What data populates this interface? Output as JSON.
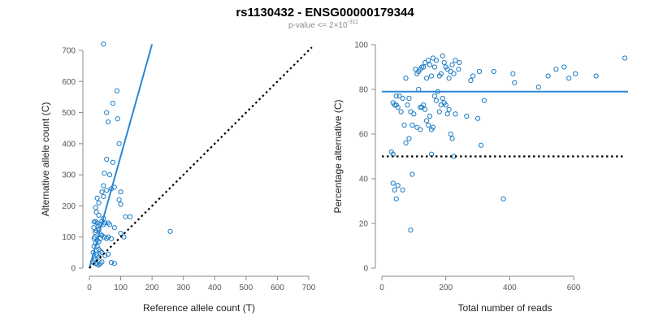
{
  "title": "rs1130432 - ENSG00000179344",
  "subtitle_prefix": "p-value <= 2×10",
  "subtitle_exponent": "-311",
  "colors": {
    "points": "#1a7cc4",
    "fit": "#2a87d6",
    "reference": "#000000",
    "axis": "#888888"
  },
  "chart_data": [
    {
      "type": "scatter",
      "name": "allele-count-scatter",
      "xlabel": "Reference allele count (T)",
      "ylabel": "Alternative allele count (C)",
      "xlim": [
        0,
        700
      ],
      "ylim": [
        0,
        700
      ],
      "xticks": [
        0,
        100,
        200,
        300,
        400,
        500,
        600,
        700
      ],
      "yticks": [
        0,
        100,
        200,
        300,
        400,
        500,
        600,
        700
      ],
      "fit_line": {
        "x": [
          0,
          200
        ],
        "y": [
          0,
          720
        ],
        "style": "solid"
      },
      "reference_line": {
        "x": [
          0,
          710
        ],
        "y": [
          0,
          710
        ],
        "style": "dotted"
      },
      "points": [
        [
          45,
          720
        ],
        [
          75,
          530
        ],
        [
          88,
          570
        ],
        [
          55,
          500
        ],
        [
          90,
          480
        ],
        [
          60,
          470
        ],
        [
          95,
          400
        ],
        [
          55,
          350
        ],
        [
          75,
          340
        ],
        [
          65,
          300
        ],
        [
          48,
          305
        ],
        [
          130,
          165
        ],
        [
          115,
          165
        ],
        [
          258,
          118
        ],
        [
          100,
          245
        ],
        [
          95,
          220
        ],
        [
          100,
          205
        ],
        [
          80,
          260
        ],
        [
          70,
          255
        ],
        [
          55,
          250
        ],
        [
          45,
          265
        ],
        [
          45,
          230
        ],
        [
          40,
          245
        ],
        [
          25,
          225
        ],
        [
          30,
          210
        ],
        [
          20,
          195
        ],
        [
          22,
          180
        ],
        [
          30,
          170
        ],
        [
          40,
          150
        ],
        [
          45,
          160
        ],
        [
          50,
          145
        ],
        [
          60,
          145
        ],
        [
          65,
          140
        ],
        [
          45,
          140
        ],
        [
          35,
          140
        ],
        [
          25,
          145
        ],
        [
          20,
          150
        ],
        [
          15,
          148
        ],
        [
          30,
          125
        ],
        [
          35,
          110
        ],
        [
          40,
          105
        ],
        [
          48,
          100
        ],
        [
          55,
          95
        ],
        [
          60,
          100
        ],
        [
          70,
          95
        ],
        [
          80,
          130
        ],
        [
          100,
          112
        ],
        [
          110,
          100
        ],
        [
          18,
          100
        ],
        [
          15,
          95
        ],
        [
          25,
          90
        ],
        [
          30,
          85
        ],
        [
          35,
          95
        ],
        [
          20,
          80
        ],
        [
          25,
          70
        ],
        [
          30,
          60
        ],
        [
          35,
          55
        ],
        [
          40,
          50
        ],
        [
          22,
          45
        ],
        [
          25,
          40
        ],
        [
          30,
          35
        ],
        [
          18,
          30
        ],
        [
          15,
          25
        ],
        [
          10,
          20
        ],
        [
          20,
          15
        ],
        [
          25,
          12
        ],
        [
          30,
          10
        ],
        [
          35,
          15
        ],
        [
          40,
          20
        ],
        [
          50,
          40
        ],
        [
          60,
          45
        ],
        [
          70,
          18
        ],
        [
          80,
          15
        ],
        [
          15,
          70
        ],
        [
          12,
          50
        ],
        [
          14,
          130
        ],
        [
          18,
          115
        ],
        [
          22,
          120
        ],
        [
          28,
          135
        ]
      ]
    },
    {
      "type": "scatter",
      "name": "percentage-scatter",
      "xlabel": "Total number of reads",
      "ylabel": "Percentage alternative (C)",
      "xlim": [
        0,
        770
      ],
      "ylim": [
        0,
        100
      ],
      "xticks": [
        0,
        200,
        400,
        600
      ],
      "yticks": [
        0,
        20,
        40,
        60,
        80,
        100
      ],
      "mean_line": {
        "y": 79,
        "x": [
          0,
          770
        ],
        "style": "solid"
      },
      "reference_line": {
        "y": 50,
        "x": [
          0,
          760
        ],
        "style": "dotted"
      },
      "points": [
        [
          760,
          94
        ],
        [
          670,
          86
        ],
        [
          605,
          87
        ],
        [
          585,
          85
        ],
        [
          570,
          90
        ],
        [
          545,
          89
        ],
        [
          520,
          86
        ],
        [
          490,
          81
        ],
        [
          415,
          83
        ],
        [
          410,
          87
        ],
        [
          350,
          88
        ],
        [
          320,
          75
        ],
        [
          305,
          88
        ],
        [
          300,
          67
        ],
        [
          278,
          84
        ],
        [
          285,
          86
        ],
        [
          265,
          68
        ],
        [
          240,
          89
        ],
        [
          242,
          92
        ],
        [
          230,
          93
        ],
        [
          225,
          87
        ],
        [
          220,
          91
        ],
        [
          215,
          88
        ],
        [
          210,
          85
        ],
        [
          205,
          89
        ],
        [
          200,
          90
        ],
        [
          195,
          92
        ],
        [
          190,
          95
        ],
        [
          185,
          87
        ],
        [
          180,
          86
        ],
        [
          175,
          79
        ],
        [
          170,
          93
        ],
        [
          165,
          90
        ],
        [
          160,
          94
        ],
        [
          155,
          86
        ],
        [
          150,
          91
        ],
        [
          145,
          93
        ],
        [
          140,
          85
        ],
        [
          135,
          92
        ],
        [
          130,
          90
        ],
        [
          125,
          90
        ],
        [
          120,
          89
        ],
        [
          115,
          88
        ],
        [
          110,
          87
        ],
        [
          105,
          89
        ],
        [
          75,
          85
        ],
        [
          65,
          76
        ],
        [
          55,
          77
        ],
        [
          50,
          72
        ],
        [
          45,
          73
        ],
        [
          40,
          73
        ],
        [
          35,
          74
        ],
        [
          45,
          77
        ],
        [
          60,
          70
        ],
        [
          70,
          64
        ],
        [
          80,
          73
        ],
        [
          85,
          76
        ],
        [
          90,
          70
        ],
        [
          95,
          64
        ],
        [
          100,
          69
        ],
        [
          110,
          63
        ],
        [
          115,
          80
        ],
        [
          120,
          72
        ],
        [
          125,
          72
        ],
        [
          130,
          73
        ],
        [
          135,
          71
        ],
        [
          140,
          66
        ],
        [
          145,
          64
        ],
        [
          150,
          68
        ],
        [
          155,
          62
        ],
        [
          160,
          63
        ],
        [
          165,
          77
        ],
        [
          170,
          75
        ],
        [
          180,
          70
        ],
        [
          185,
          73
        ],
        [
          190,
          76
        ],
        [
          195,
          74
        ],
        [
          200,
          73
        ],
        [
          205,
          69
        ],
        [
          210,
          71
        ],
        [
          215,
          60
        ],
        [
          220,
          58
        ],
        [
          225,
          50
        ],
        [
          230,
          69
        ],
        [
          120,
          62
        ],
        [
          85,
          58
        ],
        [
          75,
          56
        ],
        [
          95,
          42
        ],
        [
          90,
          17
        ],
        [
          35,
          38
        ],
        [
          40,
          35
        ],
        [
          45,
          31
        ],
        [
          50,
          37
        ],
        [
          65,
          35
        ],
        [
          30,
          52
        ],
        [
          35,
          51
        ],
        [
          155,
          51
        ],
        [
          310,
          55
        ],
        [
          380,
          31
        ]
      ]
    }
  ]
}
